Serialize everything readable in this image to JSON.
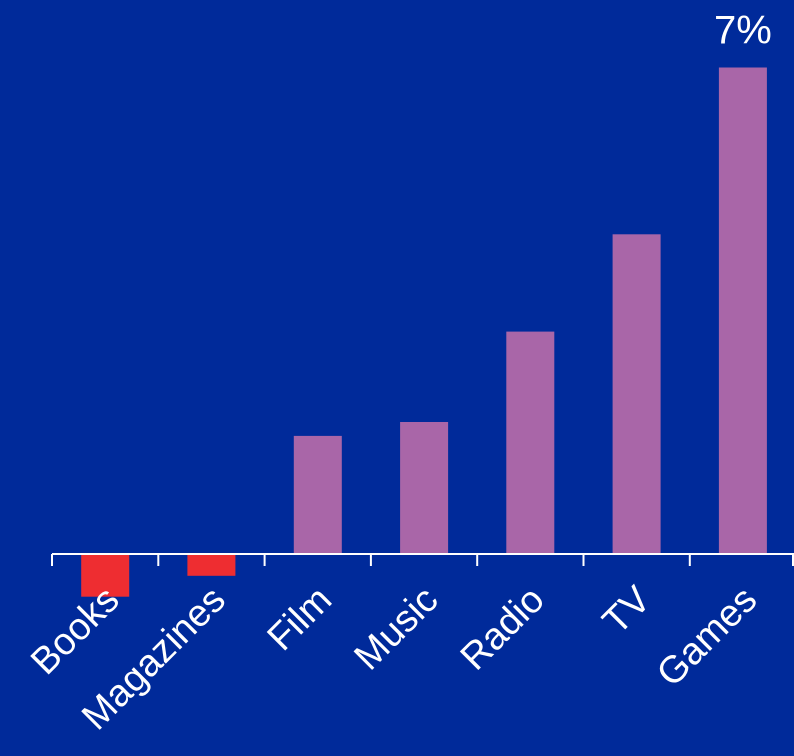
{
  "chart_data": {
    "type": "bar",
    "categories": [
      "Books",
      "Magazines",
      "Film",
      "Music",
      "Radio",
      "TV",
      "Games"
    ],
    "values": [
      -0.6,
      -0.3,
      1.7,
      1.9,
      3.2,
      4.6,
      7.0
    ],
    "data_labels": [
      "",
      "",
      "",
      "",
      "",
      "",
      "7%"
    ],
    "title": "",
    "xlabel": "",
    "ylabel": "",
    "ylim": [
      -0.6,
      7.0
    ],
    "grid": false,
    "legend": "none",
    "colors": {
      "background": "#002a9a",
      "positive": "#a966a8",
      "negative": "#ee2d31",
      "axis": "#ffffff",
      "text": "#ffffff"
    }
  }
}
